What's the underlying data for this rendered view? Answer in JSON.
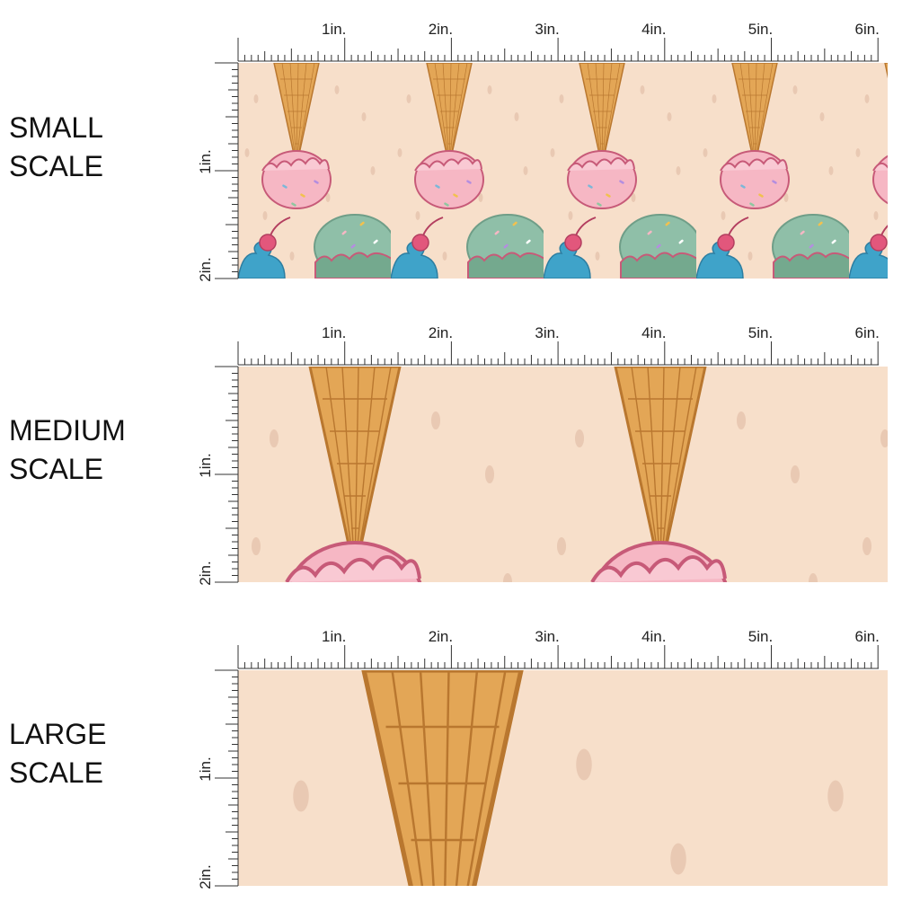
{
  "panels": [
    {
      "label": [
        "SMALL",
        "SCALE"
      ]
    },
    {
      "label": [
        "MEDIUM",
        "SCALE"
      ]
    },
    {
      "label": [
        "LARGE",
        "SCALE"
      ]
    }
  ],
  "ruler": {
    "top": [
      "1in.",
      "2in.",
      "3in.",
      "4in.",
      "5in.",
      "6in."
    ],
    "side": [
      "1in.",
      "2in."
    ]
  }
}
